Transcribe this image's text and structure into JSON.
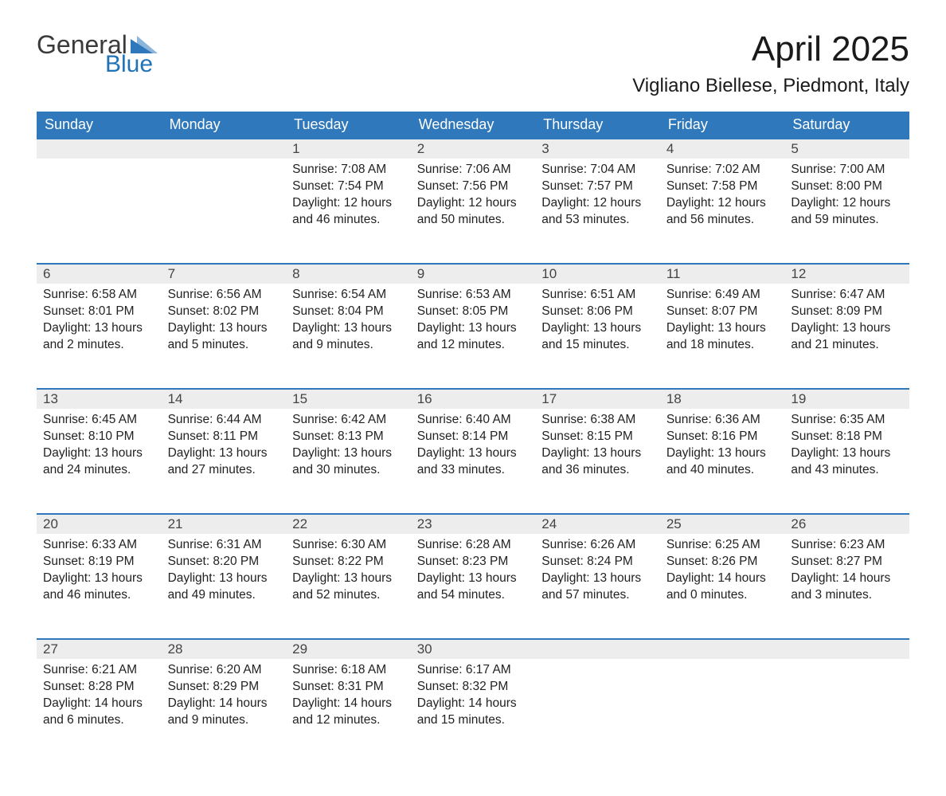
{
  "logo": {
    "general": "General",
    "blue": "Blue",
    "tri_color": "#2f78bb"
  },
  "title": "April 2025",
  "location": "Vigliano Biellese, Piedmont, Italy",
  "colors": {
    "header_bg": "#2f78bb",
    "header_text": "#ffffff",
    "daynum_bg": "#ededed",
    "row_border": "#2f78bb",
    "text": "#222222",
    "page_bg": "#ffffff"
  },
  "weekdays": [
    "Sunday",
    "Monday",
    "Tuesday",
    "Wednesday",
    "Thursday",
    "Friday",
    "Saturday"
  ],
  "weeks": [
    [
      null,
      null,
      {
        "n": "1",
        "sr": "Sunrise: 7:08 AM",
        "ss": "Sunset: 7:54 PM",
        "d1": "Daylight: 12 hours",
        "d2": "and 46 minutes."
      },
      {
        "n": "2",
        "sr": "Sunrise: 7:06 AM",
        "ss": "Sunset: 7:56 PM",
        "d1": "Daylight: 12 hours",
        "d2": "and 50 minutes."
      },
      {
        "n": "3",
        "sr": "Sunrise: 7:04 AM",
        "ss": "Sunset: 7:57 PM",
        "d1": "Daylight: 12 hours",
        "d2": "and 53 minutes."
      },
      {
        "n": "4",
        "sr": "Sunrise: 7:02 AM",
        "ss": "Sunset: 7:58 PM",
        "d1": "Daylight: 12 hours",
        "d2": "and 56 minutes."
      },
      {
        "n": "5",
        "sr": "Sunrise: 7:00 AM",
        "ss": "Sunset: 8:00 PM",
        "d1": "Daylight: 12 hours",
        "d2": "and 59 minutes."
      }
    ],
    [
      {
        "n": "6",
        "sr": "Sunrise: 6:58 AM",
        "ss": "Sunset: 8:01 PM",
        "d1": "Daylight: 13 hours",
        "d2": "and 2 minutes."
      },
      {
        "n": "7",
        "sr": "Sunrise: 6:56 AM",
        "ss": "Sunset: 8:02 PM",
        "d1": "Daylight: 13 hours",
        "d2": "and 5 minutes."
      },
      {
        "n": "8",
        "sr": "Sunrise: 6:54 AM",
        "ss": "Sunset: 8:04 PM",
        "d1": "Daylight: 13 hours",
        "d2": "and 9 minutes."
      },
      {
        "n": "9",
        "sr": "Sunrise: 6:53 AM",
        "ss": "Sunset: 8:05 PM",
        "d1": "Daylight: 13 hours",
        "d2": "and 12 minutes."
      },
      {
        "n": "10",
        "sr": "Sunrise: 6:51 AM",
        "ss": "Sunset: 8:06 PM",
        "d1": "Daylight: 13 hours",
        "d2": "and 15 minutes."
      },
      {
        "n": "11",
        "sr": "Sunrise: 6:49 AM",
        "ss": "Sunset: 8:07 PM",
        "d1": "Daylight: 13 hours",
        "d2": "and 18 minutes."
      },
      {
        "n": "12",
        "sr": "Sunrise: 6:47 AM",
        "ss": "Sunset: 8:09 PM",
        "d1": "Daylight: 13 hours",
        "d2": "and 21 minutes."
      }
    ],
    [
      {
        "n": "13",
        "sr": "Sunrise: 6:45 AM",
        "ss": "Sunset: 8:10 PM",
        "d1": "Daylight: 13 hours",
        "d2": "and 24 minutes."
      },
      {
        "n": "14",
        "sr": "Sunrise: 6:44 AM",
        "ss": "Sunset: 8:11 PM",
        "d1": "Daylight: 13 hours",
        "d2": "and 27 minutes."
      },
      {
        "n": "15",
        "sr": "Sunrise: 6:42 AM",
        "ss": "Sunset: 8:13 PM",
        "d1": "Daylight: 13 hours",
        "d2": "and 30 minutes."
      },
      {
        "n": "16",
        "sr": "Sunrise: 6:40 AM",
        "ss": "Sunset: 8:14 PM",
        "d1": "Daylight: 13 hours",
        "d2": "and 33 minutes."
      },
      {
        "n": "17",
        "sr": "Sunrise: 6:38 AM",
        "ss": "Sunset: 8:15 PM",
        "d1": "Daylight: 13 hours",
        "d2": "and 36 minutes."
      },
      {
        "n": "18",
        "sr": "Sunrise: 6:36 AM",
        "ss": "Sunset: 8:16 PM",
        "d1": "Daylight: 13 hours",
        "d2": "and 40 minutes."
      },
      {
        "n": "19",
        "sr": "Sunrise: 6:35 AM",
        "ss": "Sunset: 8:18 PM",
        "d1": "Daylight: 13 hours",
        "d2": "and 43 minutes."
      }
    ],
    [
      {
        "n": "20",
        "sr": "Sunrise: 6:33 AM",
        "ss": "Sunset: 8:19 PM",
        "d1": "Daylight: 13 hours",
        "d2": "and 46 minutes."
      },
      {
        "n": "21",
        "sr": "Sunrise: 6:31 AM",
        "ss": "Sunset: 8:20 PM",
        "d1": "Daylight: 13 hours",
        "d2": "and 49 minutes."
      },
      {
        "n": "22",
        "sr": "Sunrise: 6:30 AM",
        "ss": "Sunset: 8:22 PM",
        "d1": "Daylight: 13 hours",
        "d2": "and 52 minutes."
      },
      {
        "n": "23",
        "sr": "Sunrise: 6:28 AM",
        "ss": "Sunset: 8:23 PM",
        "d1": "Daylight: 13 hours",
        "d2": "and 54 minutes."
      },
      {
        "n": "24",
        "sr": "Sunrise: 6:26 AM",
        "ss": "Sunset: 8:24 PM",
        "d1": "Daylight: 13 hours",
        "d2": "and 57 minutes."
      },
      {
        "n": "25",
        "sr": "Sunrise: 6:25 AM",
        "ss": "Sunset: 8:26 PM",
        "d1": "Daylight: 14 hours",
        "d2": "and 0 minutes."
      },
      {
        "n": "26",
        "sr": "Sunrise: 6:23 AM",
        "ss": "Sunset: 8:27 PM",
        "d1": "Daylight: 14 hours",
        "d2": "and 3 minutes."
      }
    ],
    [
      {
        "n": "27",
        "sr": "Sunrise: 6:21 AM",
        "ss": "Sunset: 8:28 PM",
        "d1": "Daylight: 14 hours",
        "d2": "and 6 minutes."
      },
      {
        "n": "28",
        "sr": "Sunrise: 6:20 AM",
        "ss": "Sunset: 8:29 PM",
        "d1": "Daylight: 14 hours",
        "d2": "and 9 minutes."
      },
      {
        "n": "29",
        "sr": "Sunrise: 6:18 AM",
        "ss": "Sunset: 8:31 PM",
        "d1": "Daylight: 14 hours",
        "d2": "and 12 minutes."
      },
      {
        "n": "30",
        "sr": "Sunrise: 6:17 AM",
        "ss": "Sunset: 8:32 PM",
        "d1": "Daylight: 14 hours",
        "d2": "and 15 minutes."
      },
      null,
      null,
      null
    ]
  ]
}
